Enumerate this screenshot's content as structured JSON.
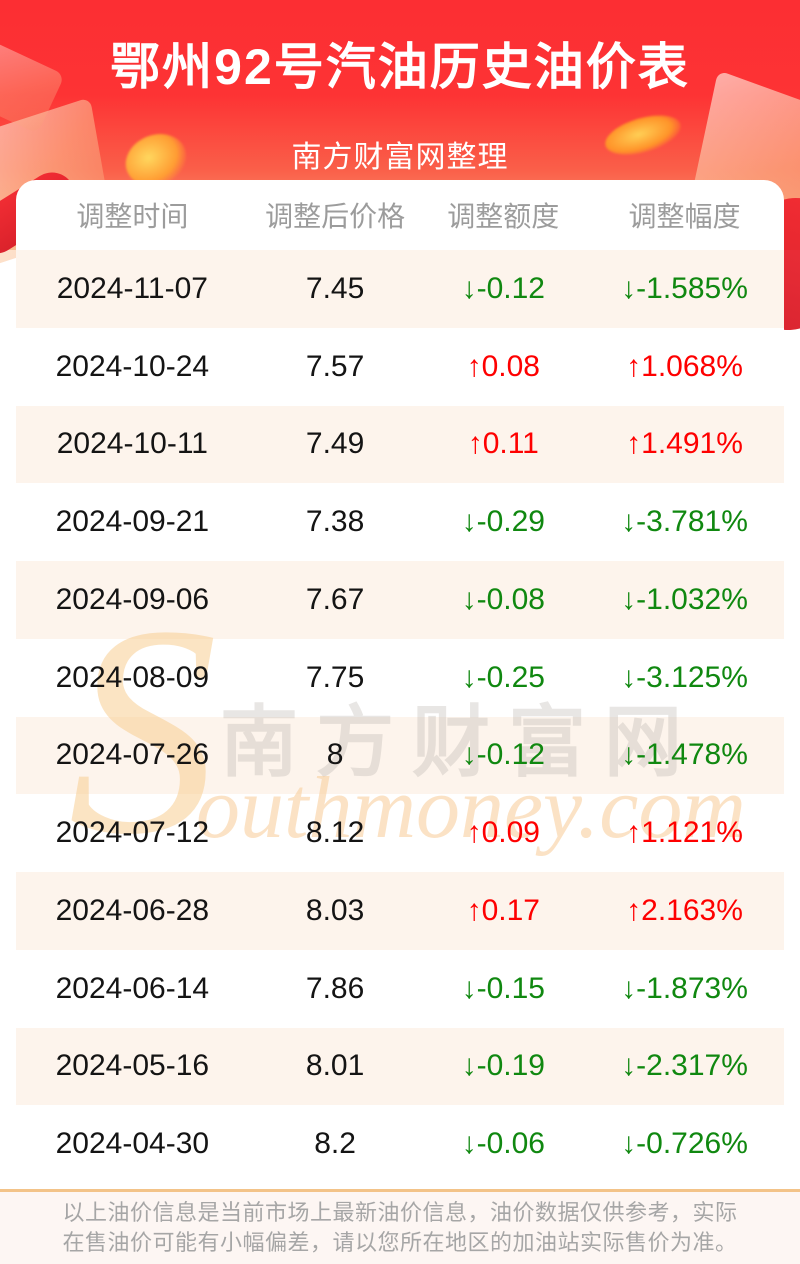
{
  "header": {
    "title": "鄂州92号汽油历史油价表",
    "subtitle": "南方财富网整理"
  },
  "watermark": {
    "initial": "S",
    "cn": "南方财富网",
    "en": "outhmoney.com"
  },
  "table": {
    "columns": [
      "调整时间",
      "调整后价格",
      "调整额度",
      "调整幅度"
    ],
    "arrows": {
      "up": "↑",
      "down": "↓"
    },
    "rows": [
      {
        "date": "2024-11-07",
        "price": "7.45",
        "change": "-0.12",
        "pct": "-1.585%",
        "direction": "down"
      },
      {
        "date": "2024-10-24",
        "price": "7.57",
        "change": "0.08",
        "pct": "1.068%",
        "direction": "up"
      },
      {
        "date": "2024-10-11",
        "price": "7.49",
        "change": "0.11",
        "pct": "1.491%",
        "direction": "up"
      },
      {
        "date": "2024-09-21",
        "price": "7.38",
        "change": "-0.29",
        "pct": "-3.781%",
        "direction": "down"
      },
      {
        "date": "2024-09-06",
        "price": "7.67",
        "change": "-0.08",
        "pct": "-1.032%",
        "direction": "down"
      },
      {
        "date": "2024-08-09",
        "price": "7.75",
        "change": "-0.25",
        "pct": "-3.125%",
        "direction": "down"
      },
      {
        "date": "2024-07-26",
        "price": "8",
        "change": "-0.12",
        "pct": "-1.478%",
        "direction": "down"
      },
      {
        "date": "2024-07-12",
        "price": "8.12",
        "change": "0.09",
        "pct": "1.121%",
        "direction": "up"
      },
      {
        "date": "2024-06-28",
        "price": "8.03",
        "change": "0.17",
        "pct": "2.163%",
        "direction": "up"
      },
      {
        "date": "2024-06-14",
        "price": "7.86",
        "change": "-0.15",
        "pct": "-1.873%",
        "direction": "down"
      },
      {
        "date": "2024-05-16",
        "price": "8.01",
        "change": "-0.19",
        "pct": "-2.317%",
        "direction": "down"
      },
      {
        "date": "2024-04-30",
        "price": "8.2",
        "change": "-0.06",
        "pct": "-0.726%",
        "direction": "down"
      }
    ]
  },
  "footer": {
    "note_line1": "以上油价信息是当前市场上最新油价信息，油价数据仅供参考，实际",
    "note_line2": "在售油价可能有小幅偏差，请以您所在地区的加油站实际售价为准。"
  },
  "colors": {
    "accent_red": "#fc2e33",
    "gradient_bottom": "#f8a077",
    "up_red": "#fe0000",
    "down_green": "#108810",
    "row_stripe": "#fdf4ec",
    "header_gray": "#9c9c9c",
    "divider_tan": "#f3c388"
  }
}
